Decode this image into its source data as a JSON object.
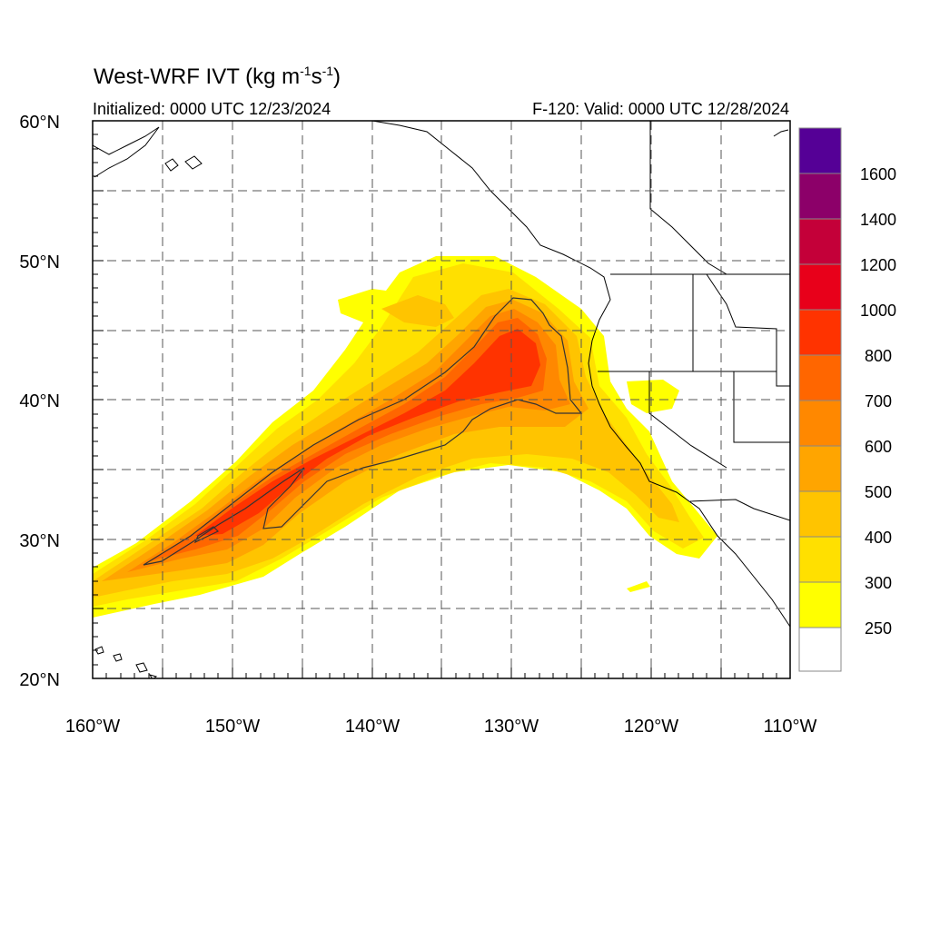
{
  "title": {
    "main": "West-WRF IVT (kg m",
    "exp1": "-1",
    "mid": "s",
    "exp2": "-1",
    "end": ")"
  },
  "initialized": "Initialized: 0000 UTC 12/23/2024",
  "valid": "F-120: Valid: 0000 UTC 12/28/2024",
  "axes": {
    "lat_labels": [
      "60°N",
      "50°N",
      "40°N",
      "30°N",
      "20°N"
    ],
    "lon_labels": [
      "160°W",
      "150°W",
      "140°W",
      "130°W",
      "120°W",
      "110°W"
    ],
    "lat_range": [
      20,
      60
    ],
    "lon_range": [
      -160,
      -110
    ],
    "grid": "dashed every 5 degrees"
  },
  "colorbar": {
    "labels": [
      "1600",
      "1400",
      "1200",
      "1000",
      "800",
      "700",
      "600",
      "500",
      "400",
      "300",
      "250"
    ],
    "colors": [
      "#550096",
      "#8C0069",
      "#C40039",
      "#E8001A",
      "#FF3300",
      "#FF6600",
      "#FF8800",
      "#FFA500",
      "#FFC400",
      "#FFE000",
      "#FFFF00",
      "#FFFFFF"
    ]
  },
  "colors": {
    "band_250": "#FFFF00",
    "band_300": "#FFE000",
    "band_400": "#FFC400",
    "band_500": "#FFA500",
    "band_600": "#FF8800",
    "band_700": "#FF6600",
    "band_800": "#FF3300"
  }
}
